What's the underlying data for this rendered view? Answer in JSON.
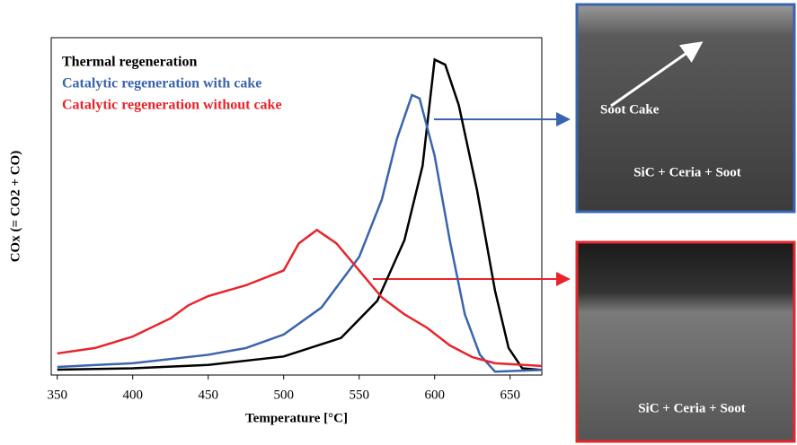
{
  "chart_data": {
    "type": "line",
    "x_label": "Temperature [°C]",
    "y_label": "COx (= CO2 + CO)",
    "xlim": [
      346,
      671
    ],
    "ylim": [
      0,
      100
    ],
    "xticks": [
      350,
      400,
      450,
      500,
      550,
      600,
      650
    ],
    "legend": "top-left",
    "series": [
      {
        "name": "Thermal regeneration",
        "color": "#000000",
        "x": [
          350,
          400,
          450,
          500,
          538,
          562,
          580,
          592,
          600,
          607,
          616,
          628,
          640,
          649,
          658,
          671
        ],
        "values": [
          1.6,
          2,
          3,
          5.5,
          11,
          22,
          40,
          62,
          93.5,
          92,
          80,
          55,
          25,
          8,
          2,
          1.5
        ]
      },
      {
        "name": "Catalytic regeneration with cake",
        "color": "#3a64ad",
        "x": [
          350,
          400,
          450,
          475,
          500,
          525,
          550,
          565,
          575,
          585,
          590,
          600,
          610,
          620,
          630,
          640,
          671
        ],
        "values": [
          2.4,
          3.5,
          6,
          8,
          12,
          20,
          35,
          52,
          70,
          83,
          82,
          65,
          40,
          18,
          6,
          1,
          1.5
        ]
      },
      {
        "name": "Catalytic regeneration without cake",
        "color": "#e8242c",
        "x": [
          350,
          375,
          400,
          425,
          437,
          450,
          475,
          500,
          510,
          522,
          535,
          550,
          565,
          580,
          595,
          610,
          625,
          640,
          671
        ],
        "values": [
          6.4,
          8,
          11.4,
          16.8,
          20.7,
          23.4,
          26.6,
          31,
          39,
          43,
          39,
          31,
          23,
          18,
          14,
          8.8,
          5.3,
          3.5,
          2.7
        ]
      }
    ],
    "annotations": [
      "Soot Cake",
      "SiC + Ceria + Soot",
      "SiC + Ceria + Soot"
    ]
  }
}
